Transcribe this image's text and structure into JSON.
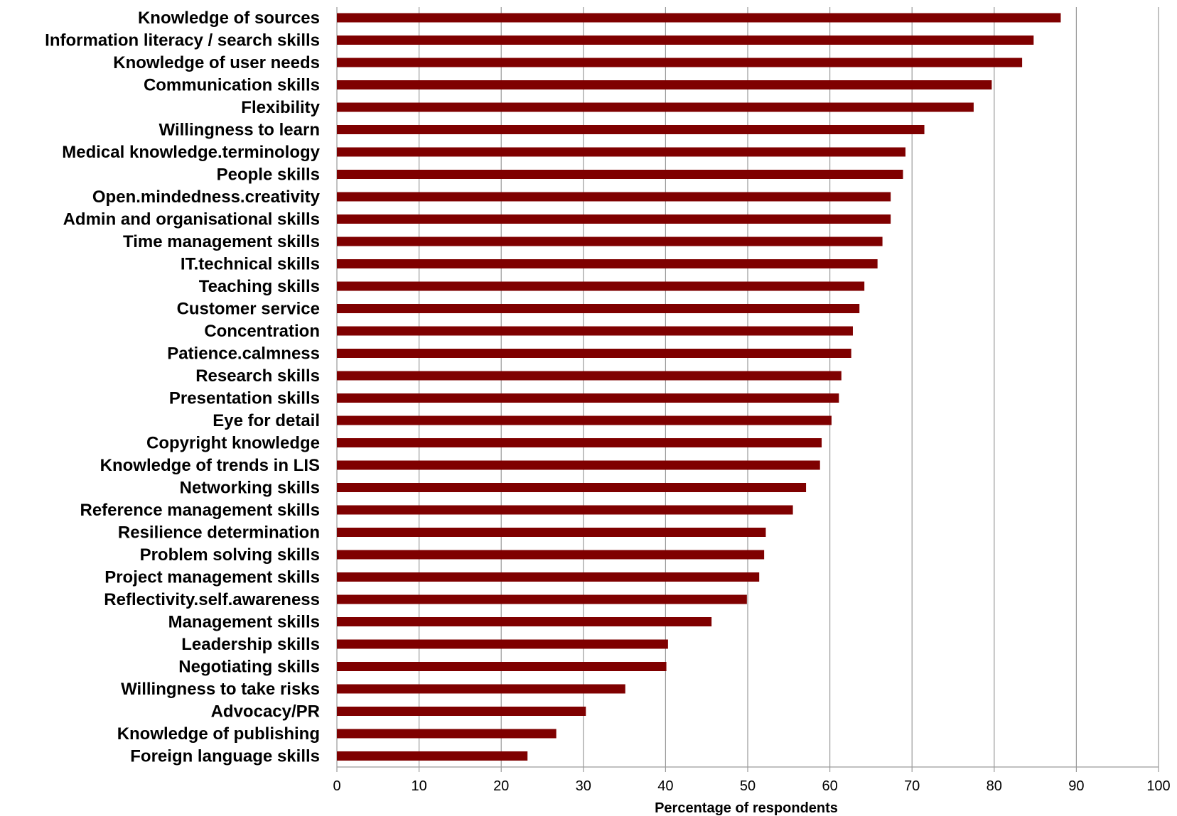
{
  "chart_data": {
    "type": "bar",
    "orientation": "horizontal",
    "title": "",
    "xlabel": "Percentage of respondents",
    "ylabel": "",
    "xlim": [
      0,
      100
    ],
    "x_ticks": [
      0,
      10,
      20,
      30,
      40,
      50,
      60,
      70,
      80,
      90,
      100
    ],
    "grid": "vertical",
    "bar_color": "#7f0000",
    "gridline_color": "#9a9a9a",
    "categories": [
      "Knowledge of sources",
      "Information literacy / search skills",
      "Knowledge of user needs",
      "Communication skills",
      "Flexibility",
      "Willingness to learn",
      "Medical knowledge.terminology",
      "People skills",
      "Open.mindedness.creativity",
      "Admin and organisational skills",
      "Time management skills",
      "IT.technical skills",
      "Teaching skills",
      "Customer service",
      "Concentration",
      "Patience.calmness",
      "Research skills",
      "Presentation skills",
      "Eye for detail",
      "Copyright knowledge",
      "Knowledge of trends in LIS",
      "Networking skills",
      "Reference management skills",
      "Resilience determination",
      "Problem solving skills",
      "Project management skills",
      "Reflectivity.self.awareness",
      "Management skills",
      "Leadership skills",
      "Negotiating skills",
      "Willingness to take risks",
      "Advocacy/PR",
      "Knowledge of publishing",
      "Foreign language skills"
    ],
    "values": [
      88.1,
      84.8,
      83.4,
      79.7,
      77.5,
      71.5,
      69.2,
      68.9,
      67.4,
      67.4,
      66.4,
      65.8,
      64.2,
      63.6,
      62.8,
      62.6,
      61.4,
      61.1,
      60.2,
      59.0,
      58.8,
      57.1,
      55.5,
      52.2,
      52.0,
      51.4,
      49.9,
      45.6,
      40.3,
      40.1,
      35.1,
      30.3,
      26.7,
      23.2
    ]
  }
}
